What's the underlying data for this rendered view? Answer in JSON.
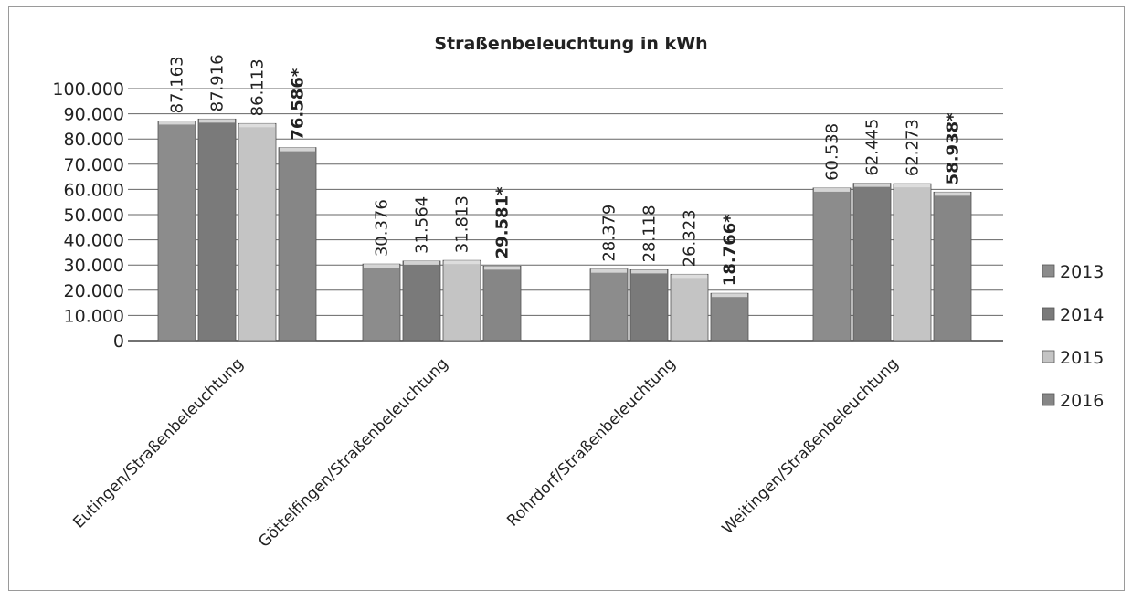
{
  "chart_data": {
    "type": "bar",
    "title": "Straßenbeleuchtung in kWh",
    "categories": [
      "Eutingen/Straßenbeleuchtung",
      "Göttelfingen/Straßenbeleuchtung",
      "Rohrdorf/Straßenbeleuchtung",
      "Weitingen/Straßenbeleuchtung"
    ],
    "series": [
      {
        "name": "2013",
        "values": [
          87163,
          30376,
          28379,
          60538
        ],
        "labels": [
          "87.163",
          "30.376",
          "28.379",
          "60.538"
        ],
        "bold": false,
        "color": "#8c8c8c"
      },
      {
        "name": "2014",
        "values": [
          87916,
          31564,
          28118,
          62445
        ],
        "labels": [
          "87.916",
          "31.564",
          "28.118",
          "62.445"
        ],
        "bold": false,
        "color": "#7a7a7a"
      },
      {
        "name": "2015",
        "values": [
          86113,
          31813,
          26323,
          62273
        ],
        "labels": [
          "86.113",
          "31.813",
          "26.323",
          "62.273"
        ],
        "bold": false,
        "color": "#c4c4c4"
      },
      {
        "name": "2016",
        "values": [
          76586,
          29581,
          18766,
          58938
        ],
        "labels": [
          "76.586*",
          "29.581*",
          "18.766*",
          "58.938*"
        ],
        "bold": true,
        "color": "#868686"
      }
    ],
    "ylim": [
      0,
      100000
    ],
    "yticks": [
      "0",
      "10.000",
      "20.000",
      "30.000",
      "40.000",
      "50.000",
      "60.000",
      "70.000",
      "80.000",
      "90.000",
      "100.000"
    ],
    "grid": true,
    "legend": "right"
  }
}
